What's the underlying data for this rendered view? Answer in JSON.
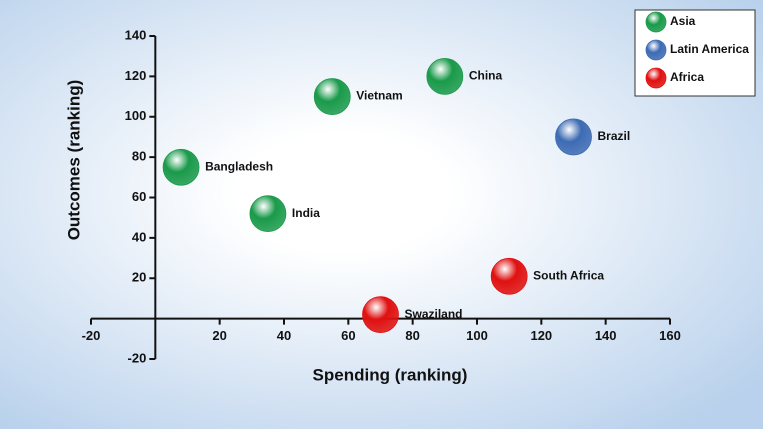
{
  "chart_data": {
    "type": "scatter",
    "x_label": "Spending (ranking)",
    "y_label": "Outcomes (ranking)",
    "xlim": [
      -20,
      160
    ],
    "xticks": [
      -20,
      20,
      40,
      60,
      80,
      100,
      120,
      140,
      160
    ],
    "ylim": [
      -20,
      140
    ],
    "yticks": [
      -20,
      20,
      40,
      60,
      80,
      100,
      120,
      140
    ],
    "legend_position": "top-right",
    "series": [
      {
        "name": "Asia",
        "color": "#1a9a4a",
        "x": [
          8,
          35,
          55,
          90
        ],
        "values": [
          75,
          52,
          110,
          120
        ],
        "labels": [
          "Bangladesh",
          "India",
          "Vietnam",
          "China"
        ]
      },
      {
        "name": "Latin America",
        "color": "#3d6bb3",
        "x": [
          130
        ],
        "values": [
          90
        ],
        "labels": [
          "Brazil"
        ]
      },
      {
        "name": "Africa",
        "color": "#e01010",
        "x": [
          110,
          70
        ],
        "values": [
          21,
          2
        ],
        "labels": [
          "South Africa",
          "Swaziland"
        ]
      }
    ]
  }
}
